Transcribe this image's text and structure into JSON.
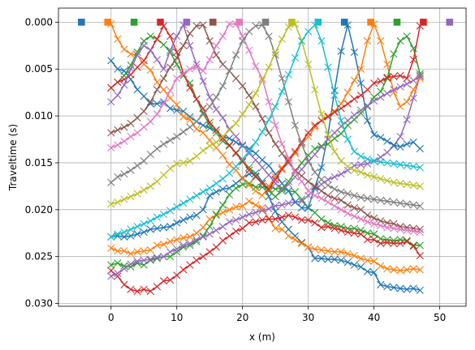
{
  "chart_data": {
    "type": "line",
    "title": "",
    "xlabel": "x (m)",
    "ylabel": "Traveltime (s)",
    "xlim": [
      -8,
      54
    ],
    "ylim": [
      0.0303,
      -0.0015
    ],
    "y_inverted": true,
    "grid": true,
    "legend": "none",
    "x_ticks": [
      0,
      10,
      20,
      30,
      40,
      50
    ],
    "x_tick_labels": [
      "0",
      "10",
      "20",
      "30",
      "40",
      "50"
    ],
    "y_ticks": [
      0.0,
      0.005,
      0.01,
      0.015,
      0.02,
      0.025,
      0.03
    ],
    "y_tick_labels": [
      "0.000",
      "0.005",
      "0.010",
      "0.015",
      "0.020",
      "0.025",
      "0.030"
    ],
    "colors": [
      "#1f77b4",
      "#ff7f0e",
      "#2ca02c",
      "#d62728",
      "#9467bd",
      "#8c564b",
      "#e377c2",
      "#7f7f7f",
      "#bcbd22",
      "#17becf"
    ],
    "sources": {
      "marker": "square",
      "x": [
        -4.5,
        -0.5,
        3.5,
        7.5,
        11.5,
        15.5,
        19.5,
        23.5,
        27.5,
        31.5,
        35.5,
        39.5,
        43.5,
        47.5,
        51.5
      ],
      "y": 0.0
    },
    "receivers": {
      "marker": "x",
      "x": [
        0,
        1,
        2,
        3,
        4,
        5,
        6,
        7,
        8,
        9,
        10,
        11,
        12,
        13,
        14,
        15,
        16,
        17,
        18,
        19,
        20,
        21,
        22,
        23,
        24,
        25,
        26,
        27,
        28,
        29,
        30,
        31,
        32,
        33,
        34,
        35,
        36,
        37,
        38,
        39,
        40,
        41,
        42,
        43,
        44,
        45,
        46,
        47
      ]
    },
    "series": [
      {
        "color": "#1f77b4",
        "values": [
          0.0229,
          0.0228,
          0.0229,
          0.0228,
          0.0226,
          0.0224,
          0.0221,
          0.022,
          0.0219,
          0.0218,
          0.0214,
          0.0211,
          0.0208,
          0.0206,
          0.02,
          0.0185,
          0.0181,
          0.0178,
          0.0177,
          0.0172,
          0.0166,
          0.0162,
          0.0161,
          0.017,
          0.0186,
          0.0202,
          0.0213,
          0.0221,
          0.0228,
          0.0235,
          0.024,
          0.0252,
          0.0252,
          0.0253,
          0.0253,
          0.0254,
          0.0256,
          0.0259,
          0.0261,
          0.0266,
          0.0267,
          0.028,
          0.0282,
          0.0283,
          0.0284,
          0.0285,
          0.0284,
          0.0286
        ]
      },
      {
        "color": "#ff7f0e",
        "values": [
          0.0241,
          0.0244,
          0.0244,
          0.0247,
          0.0245,
          0.0244,
          0.0243,
          0.0238,
          0.0237,
          0.0234,
          0.0232,
          0.023,
          0.0229,
          0.0225,
          0.0219,
          0.021,
          0.0206,
          0.0203,
          0.02,
          0.0197,
          0.0196,
          0.0191,
          0.0195,
          0.0198,
          0.021,
          0.022,
          0.0221,
          0.0228,
          0.0232,
          0.0236,
          0.024,
          0.0242,
          0.0243,
          0.0244,
          0.0245,
          0.0245,
          0.0247,
          0.0249,
          0.0252,
          0.0254,
          0.0255,
          0.026,
          0.0263,
          0.0264,
          0.0265,
          0.0264,
          0.0263,
          0.0264
        ]
      },
      {
        "color": "#2ca02c",
        "values": [
          0.0259,
          0.0257,
          0.026,
          0.0261,
          0.0257,
          0.0259,
          0.0254,
          0.0252,
          0.025,
          0.025,
          0.0245,
          0.024,
          0.0238,
          0.0234,
          0.0228,
          0.0218,
          0.0205,
          0.0195,
          0.0184,
          0.0177,
          0.0173,
          0.0172,
          0.0176,
          0.0176,
          0.0175,
          0.0178,
          0.0177,
          0.018,
          0.0181,
          0.0189,
          0.0198,
          0.0203,
          0.021,
          0.0214,
          0.0217,
          0.0218,
          0.022,
          0.022,
          0.0222,
          0.0225,
          0.0226,
          0.0231,
          0.0232,
          0.0233,
          0.0232,
          0.0233,
          0.0238,
          0.0238
        ]
      },
      {
        "color": "#d62728",
        "values": [
          0.0265,
          0.0271,
          0.028,
          0.0285,
          0.0287,
          0.0285,
          0.0287,
          0.0282,
          0.0276,
          0.0275,
          0.027,
          0.0264,
          0.0259,
          0.0254,
          0.025,
          0.0245,
          0.024,
          0.0233,
          0.0228,
          0.0223,
          0.022,
          0.0214,
          0.0213,
          0.0211,
          0.021,
          0.021,
          0.0208,
          0.0206,
          0.0208,
          0.0211,
          0.0211,
          0.0214,
          0.0219,
          0.0218,
          0.022,
          0.0222,
          0.0224,
          0.0225,
          0.0226,
          0.0232,
          0.0232,
          0.0236,
          0.0235,
          0.0236,
          0.0236,
          0.0234,
          0.0239,
          0.0249
        ]
      },
      {
        "color": "#9467bd",
        "values": [
          0.0271,
          0.0268,
          0.0263,
          0.0258,
          0.0255,
          0.0254,
          0.0253,
          0.0251,
          0.025,
          0.0245,
          0.0242,
          0.0238,
          0.0236,
          0.0232,
          0.0229,
          0.0226,
          0.0222,
          0.0218,
          0.0213,
          0.0211,
          0.0208,
          0.0205,
          0.0203,
          0.0201,
          0.0199,
          0.0196,
          0.0195,
          0.0193,
          0.0192,
          0.0191,
          0.0185,
          0.0178,
          0.0173,
          0.0168,
          0.0165,
          0.0162,
          0.0158,
          0.0153,
          0.0152,
          0.0151,
          0.0148,
          0.0144,
          0.0139,
          0.0132,
          0.0122,
          0.0104,
          0.0081,
          0.0057
        ]
      },
      {
        "color": "#1f77b4",
        "values": [
          0.0041,
          0.005,
          0.0052,
          0.0061,
          0.0072,
          0.0079,
          0.0087,
          0.0087,
          0.0085,
          0.0092,
          0.0094,
          0.0095,
          0.0101,
          0.0106,
          0.011,
          0.0113,
          0.0115,
          0.0122,
          0.0124,
          0.0128,
          0.0132,
          0.0135,
          0.014,
          0.0147,
          0.0153,
          0.0162,
          0.0172,
          0.018,
          0.0192,
          0.0198,
          0.0198,
          0.0176,
          0.0155,
          0.012,
          0.0073,
          0.0031,
          0.0003,
          0.0032,
          0.0065,
          0.0105,
          0.012,
          0.0123,
          0.0127,
          0.0131,
          0.0133,
          0.013,
          0.0128,
          0.0135
        ]
      },
      {
        "color": "#ff7f0e",
        "values": [
          0.0002,
          0.0018,
          0.0029,
          0.0034,
          0.0035,
          0.0045,
          0.0051,
          0.0064,
          0.0072,
          0.0081,
          0.0088,
          0.0101,
          0.0104,
          0.0114,
          0.0118,
          0.0126,
          0.0134,
          0.0142,
          0.0152,
          0.0158,
          0.0167,
          0.0174,
          0.018,
          0.0185,
          0.0175,
          0.0165,
          0.0155,
          0.0148,
          0.014,
          0.013,
          0.0122,
          0.0112,
          0.0105,
          0.01,
          0.0095,
          0.0087,
          0.0075,
          0.0062,
          0.005,
          0.002,
          0.0002,
          0.002,
          0.0045,
          0.0075,
          0.009,
          0.0085,
          0.0072,
          0.006
        ]
      },
      {
        "color": "#2ca02c",
        "values": [
          0.007,
          0.0064,
          0.0057,
          0.0046,
          0.0032,
          0.002,
          0.0015,
          0.0018,
          0.0024,
          0.0032,
          0.0045,
          0.0057,
          0.0065,
          0.0082,
          0.0097,
          0.011,
          0.0118,
          0.0127,
          0.0132,
          0.0139,
          0.0149,
          0.0155,
          0.0164,
          0.0172,
          0.018,
          0.0186,
          0.018,
          0.017,
          0.016,
          0.015,
          0.0142,
          0.0135,
          0.0132,
          0.013,
          0.0124,
          0.0119,
          0.011,
          0.0104,
          0.0097,
          0.009,
          0.008,
          0.0074,
          0.006,
          0.0034,
          0.002,
          0.0015,
          0.0028,
          0.0055
        ]
      },
      {
        "color": "#d62728",
        "values": [
          0.007,
          0.0064,
          0.0061,
          0.0056,
          0.0048,
          0.0041,
          0.003,
          0.0018,
          0.0004,
          0.0015,
          0.0032,
          0.0055,
          0.007,
          0.0082,
          0.0092,
          0.0107,
          0.0115,
          0.0124,
          0.0131,
          0.014,
          0.0148,
          0.0158,
          0.0165,
          0.0172,
          0.0178,
          0.0168,
          0.0157,
          0.0147,
          0.0138,
          0.0128,
          0.0118,
          0.011,
          0.0105,
          0.0101,
          0.0096,
          0.0092,
          0.0087,
          0.0082,
          0.0078,
          0.0072,
          0.0065,
          0.0063,
          0.0059,
          0.0058,
          0.0057,
          0.006,
          0.004,
          0.0004
        ]
      },
      {
        "color": "#9467bd",
        "values": [
          0.0085,
          0.0078,
          0.0067,
          0.005,
          0.0035,
          0.0025,
          0.003,
          0.004,
          0.005,
          0.003,
          0.0015,
          0.0003,
          0.0025,
          0.0045,
          0.0063,
          0.008,
          0.0093,
          0.0102,
          0.0114,
          0.0122,
          0.0131,
          0.014,
          0.0147,
          0.0155,
          0.0163,
          0.0172,
          0.0178,
          0.0173,
          0.0165,
          0.0157,
          0.0149,
          0.0141,
          0.0133,
          0.0125,
          0.0118,
          0.0111,
          0.0105,
          0.0099,
          0.0094,
          0.0089,
          0.0084,
          0.008,
          0.0076,
          0.0072,
          0.0069,
          0.0066,
          0.0062,
          0.0058
        ]
      },
      {
        "color": "#8c564b",
        "values": [
          0.0118,
          0.0115,
          0.0112,
          0.0108,
          0.0102,
          0.0095,
          0.0085,
          0.0072,
          0.006,
          0.0048,
          0.0038,
          0.0025,
          0.0012,
          0.0004,
          0.0003,
          0.002,
          0.0035,
          0.0045,
          0.0052,
          0.006,
          0.0068,
          0.0078,
          0.009,
          0.0103,
          0.0118,
          0.013,
          0.014,
          0.015,
          0.0158,
          0.0164,
          0.017,
          0.0175,
          0.018,
          0.0185,
          0.0188,
          0.019,
          0.0195,
          0.0198,
          0.02,
          0.0206,
          0.0209,
          0.0212,
          0.0214,
          0.0215,
          0.0218,
          0.0219,
          0.022,
          0.0221
        ]
      },
      {
        "color": "#e377c2",
        "values": [
          0.0134,
          0.0131,
          0.0127,
          0.0122,
          0.0118,
          0.0112,
          0.0106,
          0.0098,
          0.0087,
          0.0073,
          0.006,
          0.0055,
          0.005,
          0.0048,
          0.0052,
          0.004,
          0.0025,
          0.0015,
          0.0002,
          0.0002,
          0.0015,
          0.003,
          0.0047,
          0.006,
          0.0085,
          0.011,
          0.013,
          0.0145,
          0.016,
          0.017,
          0.018,
          0.0185,
          0.0188,
          0.0192,
          0.0196,
          0.02,
          0.0204,
          0.0207,
          0.021,
          0.0213,
          0.0215,
          0.0217,
          0.0219,
          0.022,
          0.0221,
          0.0222,
          0.0223,
          0.0224
        ]
      },
      {
        "color": "#7f7f7f",
        "values": [
          0.0171,
          0.0165,
          0.0162,
          0.0158,
          0.0153,
          0.0148,
          0.0141,
          0.0135,
          0.013,
          0.0126,
          0.0122,
          0.0117,
          0.0112,
          0.0106,
          0.0098,
          0.009,
          0.008,
          0.0068,
          0.0052,
          0.0035,
          0.002,
          0.001,
          0.0004,
          0.0003,
          0.0015,
          0.0035,
          0.006,
          0.0085,
          0.011,
          0.013,
          0.0148,
          0.016,
          0.0168,
          0.0174,
          0.0178,
          0.0181,
          0.0183,
          0.0185,
          0.0187,
          0.0188,
          0.0189,
          0.019,
          0.0191,
          0.0192,
          0.0193,
          0.0194,
          0.0195,
          0.0196
        ]
      },
      {
        "color": "#bcbd22",
        "values": [
          0.0194,
          0.0192,
          0.0189,
          0.0186,
          0.0183,
          0.0179,
          0.0175,
          0.017,
          0.0163,
          0.0156,
          0.0151,
          0.015,
          0.0148,
          0.0143,
          0.0137,
          0.0132,
          0.0128,
          0.0122,
          0.0115,
          0.0108,
          0.0098,
          0.0088,
          0.0076,
          0.0062,
          0.0048,
          0.0032,
          0.0018,
          0.0005,
          0.0002,
          0.002,
          0.0045,
          0.0072,
          0.0098,
          0.012,
          0.0138,
          0.0148,
          0.0154,
          0.0158,
          0.016,
          0.0163,
          0.0165,
          0.0167,
          0.0169,
          0.0171,
          0.0172,
          0.0173,
          0.0174,
          0.0175
        ]
      },
      {
        "color": "#17becf",
        "values": [
          0.0229,
          0.0226,
          0.0224,
          0.0221,
          0.0218,
          0.0215,
          0.0212,
          0.0208,
          0.0205,
          0.0201,
          0.0197,
          0.0193,
          0.0189,
          0.0185,
          0.0181,
          0.0177,
          0.0172,
          0.0167,
          0.0161,
          0.0154,
          0.0146,
          0.0138,
          0.0128,
          0.0117,
          0.0104,
          0.009,
          0.0074,
          0.0056,
          0.0038,
          0.002,
          0.001,
          0.0003,
          0.002,
          0.0048,
          0.0078,
          0.0105,
          0.0125,
          0.0138,
          0.0143,
          0.0146,
          0.0148,
          0.0149,
          0.015,
          0.0151,
          0.0152,
          0.0153,
          0.0154,
          0.0155
        ]
      }
    ]
  }
}
